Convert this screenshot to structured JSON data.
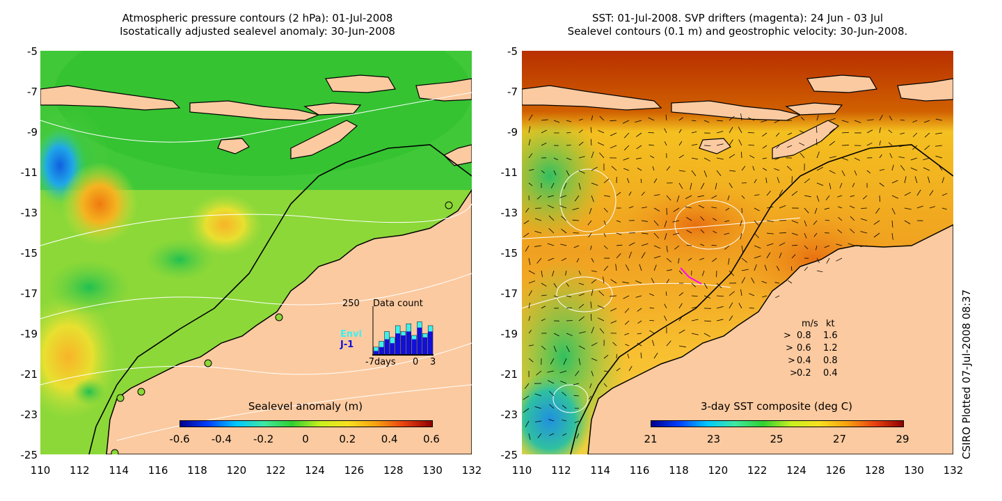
{
  "left_panel": {
    "title_line1": "Atmospheric pressure contours (2 hPa): 01-Jul-2008",
    "title_line2": "Isostatically adjusted sealevel anomaly: 30-Jun-2008",
    "colorbar": {
      "label": "Sealevel anomaly (m)",
      "ticks": [
        "-0.6",
        "-0.4",
        "-0.2",
        "0",
        "0.2",
        "0.4",
        "0.6"
      ]
    },
    "inset": {
      "title": "Data count",
      "ymax_label": "250",
      "series": [
        "Envi",
        "J-1"
      ],
      "series_colors": [
        "#3cf0f0",
        "#1010d8"
      ],
      "x_ticks": [
        "-7days",
        "0",
        "3"
      ],
      "envi_counts": [
        40,
        70,
        120,
        90,
        150,
        120,
        160,
        100,
        170,
        110,
        150
      ],
      "j1_counts": [
        20,
        40,
        80,
        60,
        110,
        100,
        120,
        80,
        140,
        90,
        120
      ]
    }
  },
  "right_panel": {
    "title_line1": "SST: 01-Jul-2008. SVP drifters (magenta): 24 Jun - 03 Jul",
    "title_line2": "Sealevel contours (0.1 m) and geostrophic velocity: 30-Jun-2008.",
    "colorbar": {
      "label": "3-day SST composite (deg C)",
      "ticks": [
        "21",
        "23",
        "25",
        "27",
        "29"
      ]
    },
    "velocity_legend": {
      "header_ms": "m/s",
      "header_kt": "kt",
      "rows": [
        {
          "ms": "0.8",
          "kt": "1.6"
        },
        {
          "ms": "0.6",
          "kt": "1.2"
        },
        {
          "ms": "0.4",
          "kt": "0.8"
        },
        {
          "ms": "0.2",
          "kt": "0.4"
        }
      ]
    }
  },
  "axes": {
    "y_ticks": [
      "-5",
      "-7",
      "-9",
      "-11",
      "-13",
      "-15",
      "-17",
      "-19",
      "-21",
      "-23",
      "-25"
    ],
    "x_ticks": [
      "110",
      "112",
      "114",
      "116",
      "118",
      "120",
      "122",
      "124",
      "126",
      "128",
      "130",
      "132"
    ],
    "lon_range": [
      110,
      132
    ],
    "lat_range": [
      -25,
      -5
    ]
  },
  "credit": "CSIRO Plotted 07-Jul-2008 08:37",
  "colors": {
    "land": "#fccaa0",
    "coast": "#000000",
    "drifter": "#ff00ff"
  }
}
